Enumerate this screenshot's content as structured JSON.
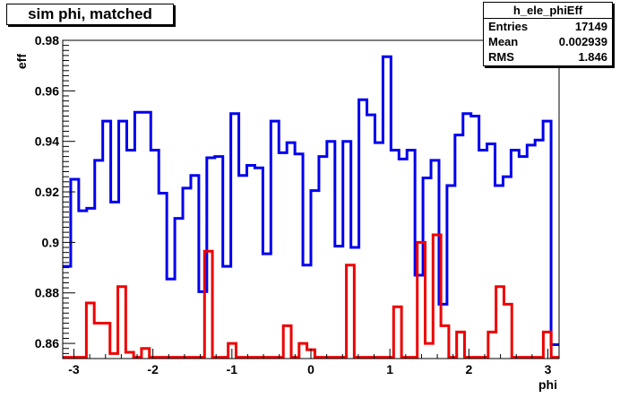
{
  "title": "sim phi, matched",
  "stats": {
    "name": "h_ele_phiEff",
    "rows": [
      {
        "label": "Entries",
        "value": "17149"
      },
      {
        "label": "Mean",
        "value": "0.002939"
      },
      {
        "label": "RMS",
        "value": "1.846"
      }
    ]
  },
  "chart_data": {
    "type": "line",
    "xlabel": "phi",
    "ylabel": "eff",
    "xlim": [
      -3.1416,
      3.1416
    ],
    "ylim": [
      0.854,
      0.98
    ],
    "xticks": [
      -3,
      -2,
      -1,
      0,
      1,
      2,
      3
    ],
    "xtick_labels": [
      "-3",
      "-2",
      "-1",
      "0",
      "1",
      "2",
      "3"
    ],
    "yticks": [
      0.86,
      0.88,
      0.9,
      0.92,
      0.94,
      0.96,
      0.98
    ],
    "ytick_labels": [
      "0.86",
      "0.88",
      "0.9",
      "0.92",
      "0.94",
      "0.96",
      "0.98"
    ],
    "grid": false,
    "series": [
      {
        "color": "#0000ee",
        "values": [
          0.8905,
          0.925,
          0.9125,
          0.9135,
          0.9325,
          0.948,
          0.916,
          0.948,
          0.9365,
          0.9515,
          0.9515,
          0.9365,
          0.9195,
          0.8855,
          0.9095,
          0.9215,
          0.9265,
          0.8805,
          0.9335,
          0.934,
          0.8905,
          0.951,
          0.9265,
          0.9305,
          0.9295,
          0.8955,
          0.948,
          0.9355,
          0.9395,
          0.935,
          0.891,
          0.9205,
          0.934,
          0.94,
          0.8985,
          0.94,
          0.898,
          0.9565,
          0.9505,
          0.9395,
          0.9735,
          0.9365,
          0.933,
          0.9365,
          0.887,
          0.9255,
          0.9325,
          0.8755,
          0.9225,
          0.9425,
          0.951,
          0.95,
          0.9365,
          0.939,
          0.9225,
          0.926,
          0.9365,
          0.934,
          0.9385,
          0.9405,
          0.948,
          0.8595
        ]
      },
      {
        "color": "#ee0000",
        "values": [
          0.8545,
          0.8545,
          0.8545,
          0.876,
          0.868,
          0.868,
          0.856,
          0.8825,
          0.8565,
          0.8545,
          0.858,
          0.8545,
          0.8545,
          0.8545,
          0.8545,
          0.8545,
          0.8545,
          0.8545,
          0.8965,
          0.8545,
          0.8545,
          0.86,
          0.8545,
          0.8545,
          0.8545,
          0.8545,
          0.8545,
          0.8545,
          0.867,
          0.8545,
          0.86,
          0.8575,
          0.8545,
          0.8545,
          0.8545,
          0.8545,
          0.891,
          0.8545,
          0.8545,
          0.8545,
          0.8545,
          0.8545,
          0.8745,
          0.8545,
          0.8545,
          0.9,
          0.86,
          0.903,
          0.867,
          0.8545,
          0.8645,
          0.8545,
          0.8545,
          0.8545,
          0.8645,
          0.8825,
          0.8755,
          0.8545,
          0.8545,
          0.8545,
          0.8545,
          0.8645,
          0.8545
        ]
      }
    ]
  }
}
